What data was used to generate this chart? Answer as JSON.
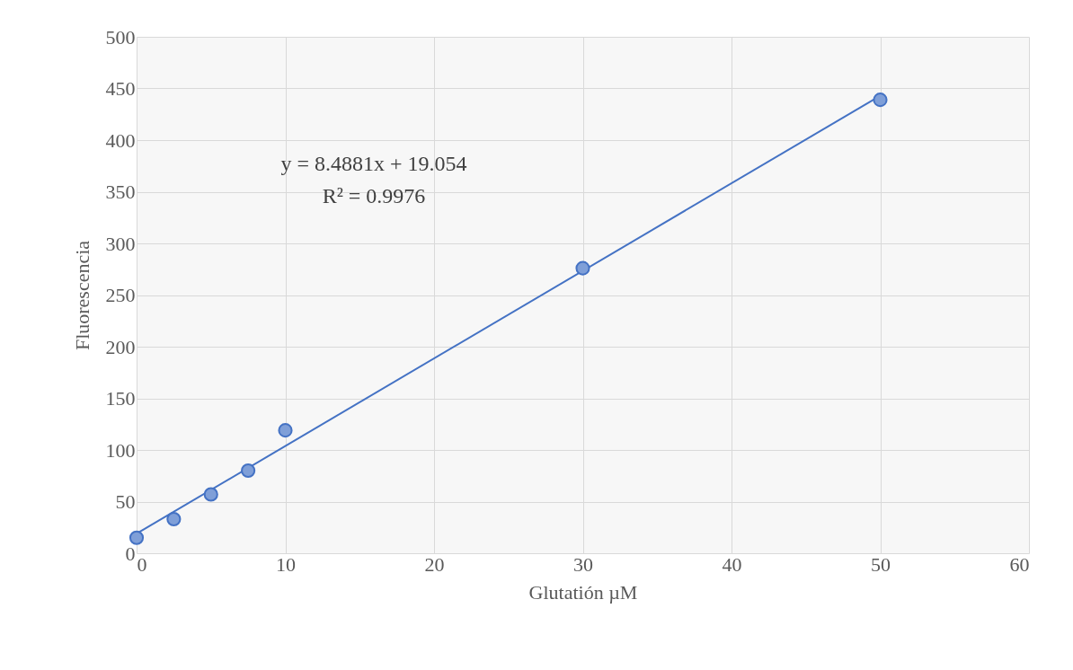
{
  "chart_data": {
    "type": "scatter",
    "xlabel": "Glutatión µM",
    "ylabel": "Fluorescencia",
    "xlim": [
      0,
      60
    ],
    "xticks": [
      0,
      10,
      20,
      30,
      40,
      50,
      60
    ],
    "ylim": [
      0,
      500
    ],
    "yticks": [
      0,
      50,
      100,
      150,
      200,
      250,
      300,
      350,
      400,
      450,
      500
    ],
    "grid": true,
    "marker": "circle",
    "annotations": [
      "y = 8.4881x + 19.054",
      "R² = 0.9976"
    ],
    "series": [
      {
        "color": "#4472c4",
        "x": [
          0,
          2.5,
          5,
          7.5,
          10,
          30,
          50
        ],
        "values": [
          15,
          33,
          57,
          80,
          119,
          276,
          439
        ]
      },
      {
        "type": "line",
        "color": "#4472c4",
        "marker": "none",
        "x": [
          0,
          50
        ],
        "values": [
          19,
          443
        ]
      }
    ]
  }
}
